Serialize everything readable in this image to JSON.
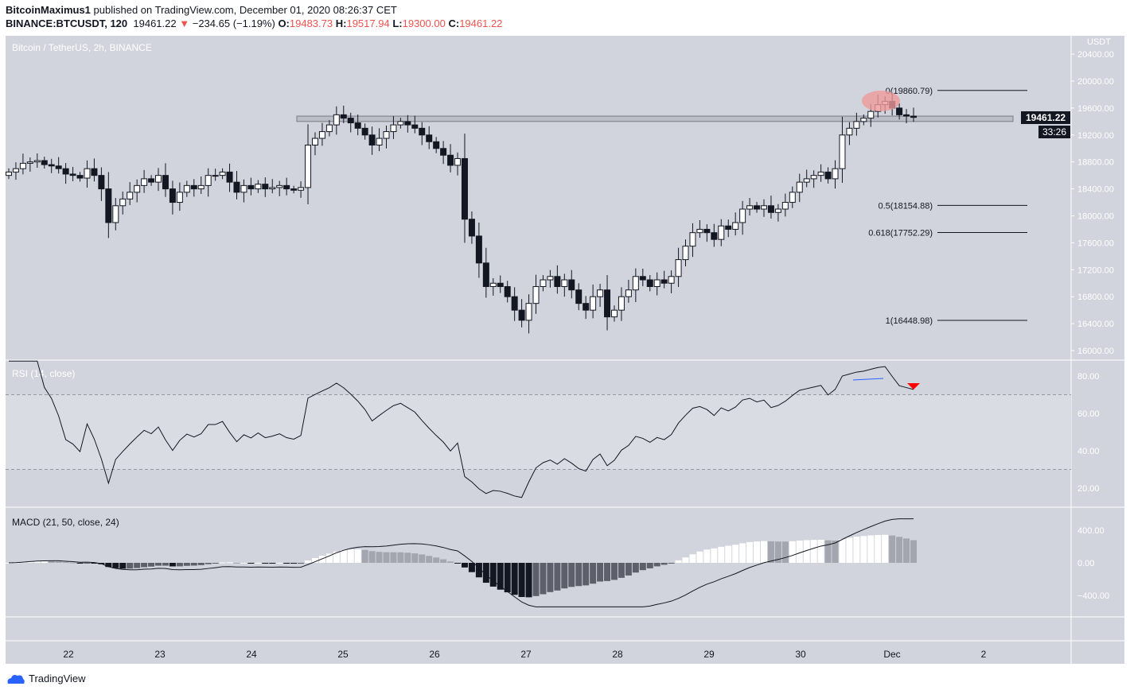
{
  "header": {
    "author": "BitcoinMaximus1",
    "published": " published on TradingView.com, December 01, 2020 08:26:37 CET",
    "symbol": "BINANCE:BTCUSDT, 120",
    "last": "19461.22",
    "change": "−234.65 (−1.19%)",
    "o_label": "O:",
    "o": "19483.73",
    "h_label": "H:",
    "h": "19517.94",
    "l_label": "L:",
    "l": "19300.00",
    "c_label": "C:",
    "c": "19461.22"
  },
  "pane_title": "Bitcoin / TetherUS, 2h, BINANCE",
  "footer": {
    "brand": "TradingView"
  },
  "colors": {
    "bg": "#d1d4dc",
    "up": "#ffffff",
    "down": "#131722",
    "accent_red": "#ef5350",
    "rsi_line": "#131722",
    "rsi_highlight": "#2962ff"
  },
  "chart_data": [
    {
      "type": "candlestick",
      "title": "Bitcoin / TetherUS, 2h, BINANCE",
      "ylabel": "USDT",
      "ylim": [
        15800,
        20500
      ],
      "yticks": [
        "16000.00",
        "16400.00",
        "16800.00",
        "17200.00",
        "17600.00",
        "18000.00",
        "18400.00",
        "18800.00",
        "19200.00",
        "19600.00",
        "20000.00",
        "20400.00"
      ],
      "xticks": [
        "22",
        "23",
        "24",
        "25",
        "26",
        "27",
        "28",
        "29",
        "30",
        "Dec",
        "2"
      ],
      "price_label": "19461.22",
      "countdown": "33:26",
      "closes": [
        18650,
        18700,
        18780,
        18800,
        18820,
        18760,
        18740,
        18700,
        18620,
        18600,
        18560,
        18700,
        18600,
        18400,
        17900,
        18150,
        18250,
        18350,
        18450,
        18550,
        18500,
        18600,
        18400,
        18200,
        18350,
        18450,
        18400,
        18450,
        18600,
        18600,
        18650,
        18500,
        18350,
        18450,
        18400,
        18470,
        18400,
        18420,
        18450,
        18400,
        18380,
        18420,
        19050,
        19150,
        19250,
        19350,
        19500,
        19450,
        19380,
        19300,
        19200,
        19050,
        19150,
        19250,
        19350,
        19400,
        19350,
        19300,
        19200,
        19100,
        19000,
        18900,
        18750,
        18850,
        17950,
        17700,
        17300,
        16950,
        17000,
        16950,
        16800,
        16600,
        16450,
        16700,
        16950,
        17050,
        17100,
        16950,
        17050,
        16900,
        16700,
        16600,
        16800,
        16900,
        16500,
        16600,
        16800,
        16900,
        17100,
        17050,
        16950,
        17050,
        17000,
        17100,
        17350,
        17550,
        17750,
        17800,
        17750,
        17650,
        17850,
        17800,
        17900,
        18100,
        18150,
        18100,
        18150,
        18050,
        18100,
        18200,
        18350,
        18500,
        18550,
        18600,
        18650,
        18550,
        18700,
        19200,
        19300,
        19400,
        19450,
        19550,
        19650,
        19700,
        19600,
        19500,
        19480,
        19461.22
      ],
      "fib_levels": [
        {
          "label": "0(19860.79)",
          "value": 19860.79
        },
        {
          "label": "0.5(18154.88)",
          "value": 18154.88
        },
        {
          "label": "0.618(17752.29)",
          "value": 17752.29
        },
        {
          "label": "1(16448.98)",
          "value": 16448.98
        }
      ],
      "resistance_zone": [
        19400,
        19480
      ]
    },
    {
      "type": "line",
      "title": "RSI (14, close)",
      "ylim": [
        10,
        90
      ],
      "yticks": [
        "20.00",
        "40.00",
        "60.00",
        "80.00"
      ],
      "bands": [
        30,
        70
      ],
      "signal": "bearish-divergence"
    },
    {
      "type": "bar+line",
      "title": "MACD (21, 50, close, 24)",
      "ylim": [
        -560,
        560
      ],
      "yticks": [
        "400.00",
        "0.00",
        "−400.00"
      ]
    }
  ]
}
